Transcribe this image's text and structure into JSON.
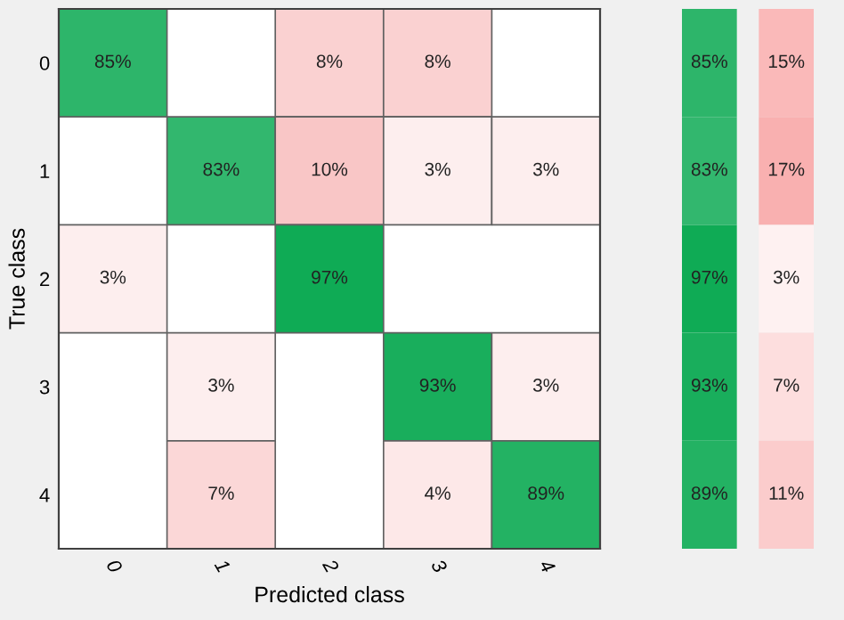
{
  "chart_data": [
    {
      "type": "heatmap",
      "xlabel": "Predicted class",
      "ylabel": "True class",
      "categories": [
        "0",
        "1",
        "2",
        "3",
        "4"
      ],
      "y_categories": [
        "0",
        "1",
        "2",
        "3",
        "4"
      ],
      "cells": [
        [
          85,
          null,
          8,
          8,
          null
        ],
        [
          null,
          83,
          10,
          3,
          3
        ],
        [
          3,
          null,
          97,
          null,
          null
        ],
        [
          null,
          3,
          null,
          93,
          3
        ],
        [
          null,
          7,
          null,
          4,
          89
        ]
      ],
      "cell_labels": [
        [
          "85%",
          null,
          "8%",
          "8%",
          null
        ],
        [
          null,
          "83%",
          "10%",
          "3%",
          "3%"
        ],
        [
          "3%",
          null,
          "97%",
          null,
          null
        ],
        [
          null,
          "3%",
          null,
          "93%",
          "3%"
        ],
        [
          null,
          "7%",
          null,
          "4%",
          "89%"
        ]
      ],
      "colors": [
        [
          "#0fab55",
          null,
          "#f9c6c6",
          "#f9c6c6",
          null
        ],
        [
          null,
          "#0fab55",
          "#f9c6c6",
          "#f9c6c6",
          "#f9c6c6"
        ],
        [
          "#f9c6c6",
          null,
          "#0fab55",
          null,
          null
        ],
        [
          null,
          "#f9c6c6",
          null,
          "#0fab55",
          "#f9c6c6"
        ],
        [
          null,
          "#f9c6c6",
          null,
          "#f9c6c6",
          "#0fab55"
        ]
      ]
    },
    {
      "type": "heatmap",
      "categories": [
        null,
        null
      ],
      "y_categories": [
        null,
        null,
        null,
        null,
        null
      ],
      "cells": [
        [
          85,
          15
        ],
        [
          83,
          17
        ],
        [
          97,
          3
        ],
        [
          93,
          7
        ],
        [
          89,
          11
        ]
      ],
      "cell_labels": [
        [
          "85%",
          "15%"
        ],
        [
          "83%",
          "17%"
        ],
        [
          "97%",
          "3%"
        ],
        [
          "93%",
          "7%"
        ],
        [
          "89%",
          "11%"
        ]
      ],
      "colors": [
        [
          "#0fab55",
          "#f9b0b0"
        ],
        [
          "#0fab55",
          "#f9b0b0"
        ],
        [
          "#0fab55",
          "#f9b0b0"
        ],
        [
          "#0fab55",
          "#f9b0b0"
        ],
        [
          "#0fab55",
          "#f9b0b0"
        ]
      ]
    }
  ]
}
